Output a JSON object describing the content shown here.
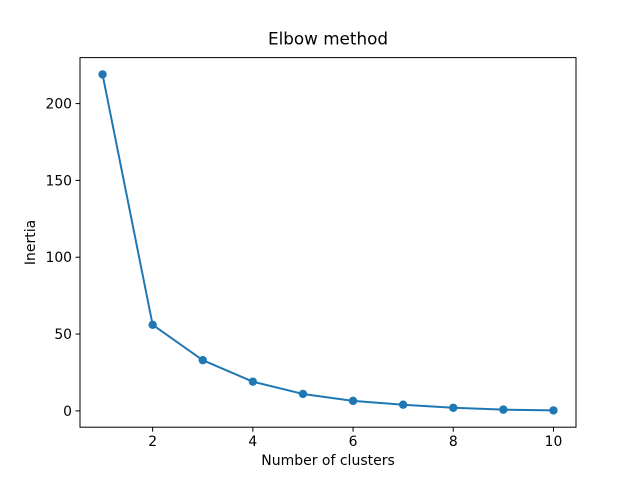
{
  "figure": {
    "background": "#ffffff"
  },
  "chart_data": {
    "type": "line",
    "title": "Elbow method",
    "xlabel": "Number of clusters",
    "ylabel": "Inertia",
    "series": [
      {
        "name": "inertia",
        "x": [
          1,
          2,
          3,
          4,
          5,
          6,
          7,
          8,
          9,
          10
        ],
        "y": [
          219,
          56,
          33,
          19,
          11,
          6.5,
          4,
          2,
          0.8,
          0.3
        ],
        "color": "#1f77b4",
        "marker": "circle",
        "line_style": "solid"
      }
    ],
    "xticks": [
      2,
      4,
      6,
      8,
      10
    ],
    "yticks": [
      0,
      50,
      100,
      150,
      200
    ],
    "xlim": [
      0.55,
      10.45
    ],
    "ylim": [
      -10.64,
      229.94
    ],
    "grid": false,
    "legend_position": "none",
    "axis_color": "#000000"
  }
}
